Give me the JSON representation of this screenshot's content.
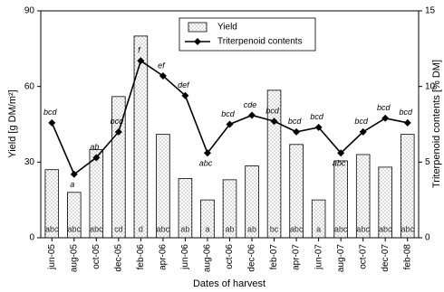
{
  "chart_data": {
    "type": "bar_line",
    "xlabel": "Dates of harvest",
    "ylabel": "Yield [g DM/m²]",
    "y2label": "Triterpenoid contents [% DM]",
    "categories": [
      "jun-05",
      "aug-05",
      "oct-05",
      "dec-05",
      "feb-06",
      "apr-06",
      "jun-06",
      "aug-06",
      "oct-06",
      "dec-06",
      "feb-07",
      "apr-07",
      "jun-07",
      "aug-07",
      "oct-07",
      "dec-07",
      "feb-08"
    ],
    "series": [
      {
        "name": "Yield",
        "type": "bar",
        "color": "#ffffff",
        "values": [
          27,
          18,
          35,
          56,
          80,
          41,
          23.5,
          15,
          23,
          28.5,
          58.5,
          37,
          15,
          30.5,
          33,
          28,
          41
        ],
        "letters": [
          "abc",
          "abc",
          "abc",
          "cd",
          "d",
          "abc",
          "ab",
          "a",
          "ab",
          "ab",
          "bc",
          "abc",
          "a",
          "abc",
          "abc",
          "abc",
          "abc"
        ]
      },
      {
        "name": "Triterpenoid contents",
        "type": "line",
        "axis": "y2",
        "color": "#000000",
        "values": [
          7.6,
          4.2,
          5.3,
          7.0,
          11.7,
          10.7,
          9.4,
          5.6,
          7.5,
          8.1,
          7.7,
          7.0,
          7.3,
          5.6,
          7.0,
          7.9,
          7.6
        ],
        "letters": [
          "bcd",
          "a",
          "ab",
          "bcd",
          "f",
          "ef",
          "def",
          "abc",
          "bcd",
          "cde",
          "bcd",
          "bcd",
          "bcd",
          "abc",
          "bcd",
          "bcd",
          "bcd"
        ]
      }
    ],
    "ylim": [
      0,
      90
    ],
    "yticks": [
      0,
      30,
      60,
      90
    ],
    "y2lim": [
      0,
      15
    ],
    "y2ticks": [
      0,
      5,
      10,
      15
    ],
    "legend": "top-center"
  }
}
